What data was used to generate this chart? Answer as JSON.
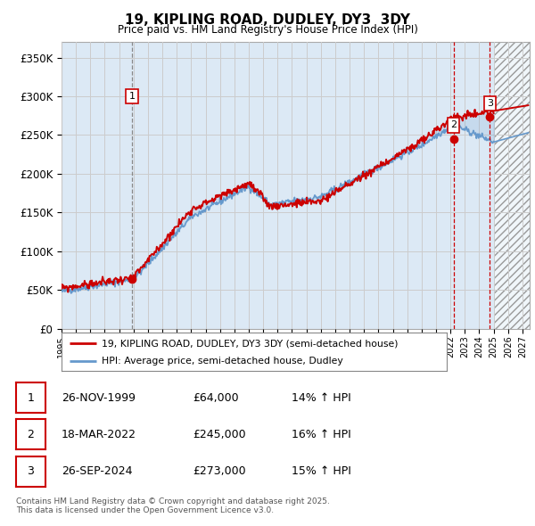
{
  "title": "19, KIPLING ROAD, DUDLEY, DY3  3DY",
  "subtitle": "Price paid vs. HM Land Registry's House Price Index (HPI)",
  "xlim_start": 1995.0,
  "xlim_end": 2027.5,
  "ylim": [
    0,
    370000
  ],
  "yticks": [
    0,
    50000,
    100000,
    150000,
    200000,
    250000,
    300000,
    350000
  ],
  "ytick_labels": [
    "£0",
    "£50K",
    "£100K",
    "£150K",
    "£200K",
    "£250K",
    "£300K",
    "£350K"
  ],
  "transactions": [
    {
      "date_num": 1999.9,
      "price": 64000,
      "label": "1"
    },
    {
      "date_num": 2022.21,
      "price": 245000,
      "label": "2"
    },
    {
      "date_num": 2024.74,
      "price": 273000,
      "label": "3"
    }
  ],
  "trans1_vline_style": "dashed_gray",
  "trans23_vline_style": "dashed_red",
  "legend_entry1": "19, KIPLING ROAD, DUDLEY, DY3 3DY (semi-detached house)",
  "legend_entry2": "HPI: Average price, semi-detached house, Dudley",
  "table_rows": [
    [
      "1",
      "26-NOV-1999",
      "£64,000",
      "14% ↑ HPI"
    ],
    [
      "2",
      "18-MAR-2022",
      "£245,000",
      "16% ↑ HPI"
    ],
    [
      "3",
      "26-SEP-2024",
      "£273,000",
      "15% ↑ HPI"
    ]
  ],
  "footer": "Contains HM Land Registry data © Crown copyright and database right 2025.\nThis data is licensed under the Open Government Licence v3.0.",
  "line_color_red": "#cc0000",
  "line_color_blue": "#6699cc",
  "grid_color": "#cccccc",
  "chart_bg": "#dce9f5",
  "future_start": 2025.0,
  "noise_seed_hpi": 42,
  "noise_seed_pp": 99
}
